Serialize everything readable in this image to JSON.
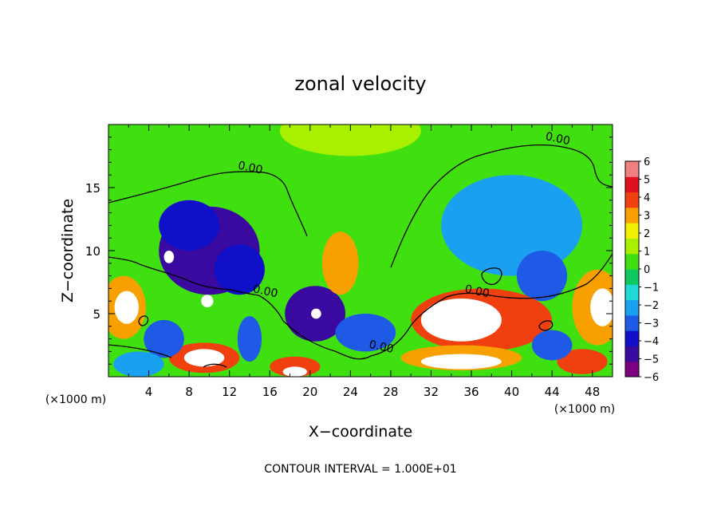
{
  "chart_data": {
    "type": "heatmap",
    "title": "zonal velocity",
    "xlabel": "X−coordinate",
    "ylabel": "Z−coordinate",
    "x_unit_left": "(×1000 m)",
    "x_unit_right": "(×1000 m)",
    "footer": "CONTOUR INTERVAL = 1.000E+01",
    "xlim": [
      0,
      50
    ],
    "ylim": [
      0,
      20
    ],
    "x_ticks": [
      4,
      8,
      12,
      16,
      20,
      24,
      28,
      32,
      36,
      40,
      44,
      48
    ],
    "x_tick_labels": [
      "4",
      "8",
      "12",
      "16",
      "20",
      "24",
      "28",
      "32",
      "36",
      "40",
      "44",
      "48"
    ],
    "y_ticks": [
      5,
      10,
      15
    ],
    "y_tick_labels": [
      "5",
      "10",
      "15"
    ],
    "colorbar": {
      "min": -6,
      "max": 6,
      "ticks": [
        6,
        5,
        4,
        3,
        2,
        1,
        0,
        -1,
        -2,
        -3,
        -4,
        -5,
        -6
      ],
      "tick_labels": [
        "6",
        "5",
        "4",
        "3",
        "2",
        "1",
        "0",
        "−1",
        "−2",
        "−3",
        "−4",
        "−5",
        "−6"
      ],
      "colors": [
        "#7a0080",
        "#3a0aa0",
        "#1010c8",
        "#1e5ae6",
        "#1aa0f0",
        "#20d8d8",
        "#10c860",
        "#40e010",
        "#a8f000",
        "#f0f000",
        "#f8a000",
        "#f04010",
        "#e01020",
        "#f08080"
      ]
    },
    "contour_labels": [
      {
        "x": 14,
        "y": 16.3,
        "text": "0.00"
      },
      {
        "x": 44.5,
        "y": 18.6,
        "text": "0.00"
      },
      {
        "x": 15.5,
        "y": 6.5,
        "text": "0.00"
      },
      {
        "x": 36.5,
        "y": 6.5,
        "text": "0.00"
      },
      {
        "x": 27,
        "y": 2.1,
        "text": "0.00"
      }
    ],
    "features": [
      {
        "x": 0,
        "y": 10,
        "rx": 50,
        "ry": 10,
        "v": 1
      },
      {
        "x": 24,
        "y": 19.5,
        "rx": 7,
        "ry": 2,
        "v": 2
      },
      {
        "x": 40,
        "y": 12,
        "rx": 7,
        "ry": 4,
        "v": -2
      },
      {
        "x": 43,
        "y": 8,
        "rx": 2.5,
        "ry": 2,
        "v": -3
      },
      {
        "x": 10,
        "y": 10,
        "rx": 5,
        "ry": 3.5,
        "v": -5
      },
      {
        "x": 8,
        "y": 12,
        "rx": 3,
        "ry": 2,
        "v": -4
      },
      {
        "x": 13,
        "y": 8.5,
        "rx": 2.5,
        "ry": 2,
        "v": -4
      },
      {
        "x": 20.5,
        "y": 5,
        "rx": 3,
        "ry": 2.2,
        "v": -5
      },
      {
        "x": 25.5,
        "y": 3.5,
        "rx": 3,
        "ry": 1.5,
        "v": -3
      },
      {
        "x": 23,
        "y": 9,
        "rx": 1.8,
        "ry": 2.5,
        "v": 4
      },
      {
        "x": 37,
        "y": 4.5,
        "rx": 7,
        "ry": 2.5,
        "v": 5
      },
      {
        "x": 35,
        "y": 4.5,
        "rx": 4,
        "ry": 1.7,
        "v": 7
      },
      {
        "x": 1.5,
        "y": 5.5,
        "rx": 2.2,
        "ry": 2.5,
        "v": 4
      },
      {
        "x": 1.8,
        "y": 5.5,
        "rx": 1.2,
        "ry": 1.3,
        "v": 7
      },
      {
        "x": 48.5,
        "y": 5.5,
        "rx": 2.5,
        "ry": 3,
        "v": 4
      },
      {
        "x": 49,
        "y": 5.5,
        "rx": 1.2,
        "ry": 1.5,
        "v": 7
      },
      {
        "x": 9.5,
        "y": 1.5,
        "rx": 3.5,
        "ry": 1.2,
        "v": 5
      },
      {
        "x": 9.5,
        "y": 1.5,
        "rx": 2,
        "ry": 0.7,
        "v": 7
      },
      {
        "x": 35,
        "y": 1.5,
        "rx": 6,
        "ry": 1,
        "v": 4
      },
      {
        "x": 35,
        "y": 1.2,
        "rx": 4,
        "ry": 0.6,
        "v": 7
      },
      {
        "x": 18.5,
        "y": 0.8,
        "rx": 2.5,
        "ry": 0.8,
        "v": 5
      },
      {
        "x": 18.5,
        "y": 0.4,
        "rx": 1.2,
        "ry": 0.4,
        "v": 7
      },
      {
        "x": 47,
        "y": 1.2,
        "rx": 2.5,
        "ry": 1,
        "v": 5
      },
      {
        "x": 5.5,
        "y": 3,
        "rx": 2,
        "ry": 1.5,
        "v": -3
      },
      {
        "x": 14,
        "y": 3,
        "rx": 1.2,
        "ry": 1.8,
        "v": -3
      },
      {
        "x": 44,
        "y": 2.5,
        "rx": 2,
        "ry": 1.2,
        "v": -3
      },
      {
        "x": 3,
        "y": 1,
        "rx": 2.5,
        "ry": 1,
        "v": -2
      },
      {
        "x": 6,
        "y": 9.5,
        "rx": 0.5,
        "ry": 0.5,
        "v": 8
      },
      {
        "x": 9.8,
        "y": 6,
        "rx": 0.6,
        "ry": 0.5,
        "v": 8
      },
      {
        "x": 20.6,
        "y": 5,
        "rx": 0.5,
        "ry": 0.4,
        "v": 8
      }
    ]
  }
}
